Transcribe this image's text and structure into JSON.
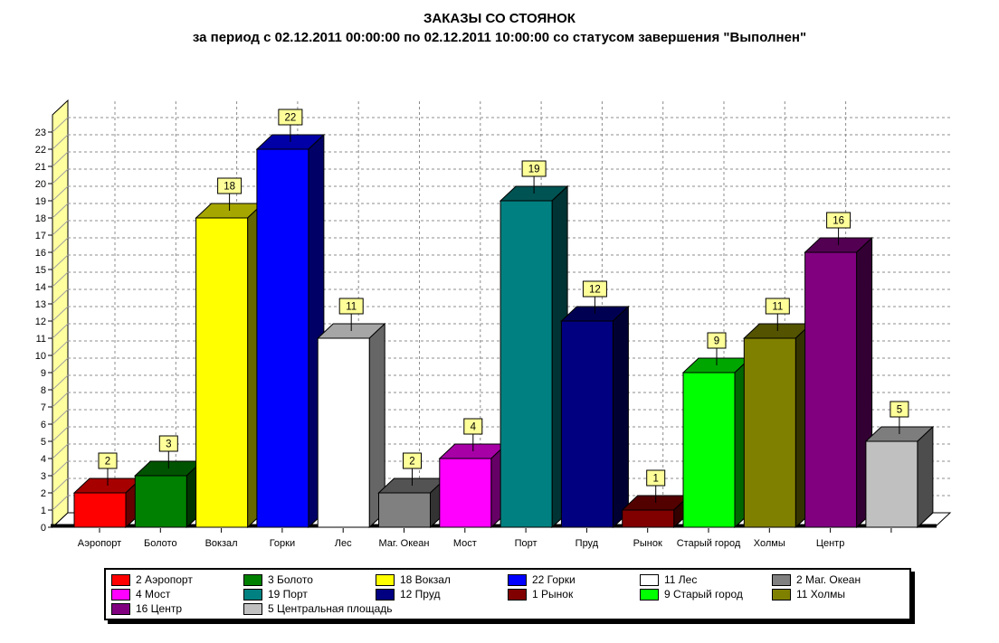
{
  "title": "ЗАКАЗЫ СО СТОЯНОК",
  "subtitle": "за период с 02.12.2011 00:00:00 по 02.12.2011 10:00:00 со статусом завершения \"Выполнен\"",
  "chart_data": {
    "type": "bar",
    "style": "3d-columns",
    "title": "ЗАКАЗЫ СО СТОЯНОК",
    "subtitle": "за период с 02.12.2011 00:00:00 по 02.12.2011 10:00:00 со статусом завершения \"Выполнен\"",
    "categories": [
      "Аэропорт",
      "Болото",
      "Вокзал",
      "Горки",
      "Лес",
      "Маг. Океан",
      "Мост",
      "Порт",
      "Пруд",
      "Рынок",
      "Старый город",
      "Холмы",
      "Центр",
      "Центральная площадь"
    ],
    "values": [
      2,
      3,
      18,
      22,
      11,
      2,
      4,
      19,
      12,
      1,
      9,
      11,
      16,
      5
    ],
    "colors": [
      "#FF0000",
      "#008000",
      "#FFFF00",
      "#0000FF",
      "#FFFFFF",
      "#808080",
      "#FF00FF",
      "#008080",
      "#000080",
      "#800000",
      "#00FF00",
      "#808000",
      "#800080",
      "#C0C0C0"
    ],
    "x_axis_labels_shown": [
      "Аэропорт",
      "Болото",
      "Вокзал",
      "Горки",
      "Лес",
      "Маг. Океан",
      "Мост",
      "Порт",
      "Пруд",
      "Рынок",
      "Старый город",
      "Холмы",
      "Центр"
    ],
    "value_labels": [
      2,
      3,
      18,
      22,
      11,
      2,
      4,
      19,
      12,
      1,
      9,
      11,
      16,
      5
    ],
    "ylim": [
      0,
      23
    ],
    "y_tick_step": 1,
    "grid": true,
    "legend_position": "bottom",
    "legend_items": [
      {
        "label": "2 Аэропорт",
        "color": "#FF0000"
      },
      {
        "label": "3 Болото",
        "color": "#008000"
      },
      {
        "label": "18 Вокзал",
        "color": "#FFFF00"
      },
      {
        "label": "22 Горки",
        "color": "#0000FF"
      },
      {
        "label": "11 Лес",
        "color": "#FFFFFF"
      },
      {
        "label": "2 Маг. Океан",
        "color": "#808080"
      },
      {
        "label": "4 Мост",
        "color": "#FF00FF"
      },
      {
        "label": "19 Порт",
        "color": "#008080"
      },
      {
        "label": "12 Пруд",
        "color": "#000080"
      },
      {
        "label": "1 Рынок",
        "color": "#800000"
      },
      {
        "label": "9 Старый город",
        "color": "#00FF00"
      },
      {
        "label": "11 Холмы",
        "color": "#808000"
      },
      {
        "label": "16 Центр",
        "color": "#800080"
      },
      {
        "label": "5 Центральная площадь",
        "color": "#C0C0C0"
      }
    ]
  },
  "colors": {
    "background": "#FFFFFF",
    "wall": "#FFFFA0",
    "grid": "#8c8c8c",
    "hatch": "#a0a0a0",
    "value_label_bg": "#FFFF99",
    "axis": "#000000"
  }
}
